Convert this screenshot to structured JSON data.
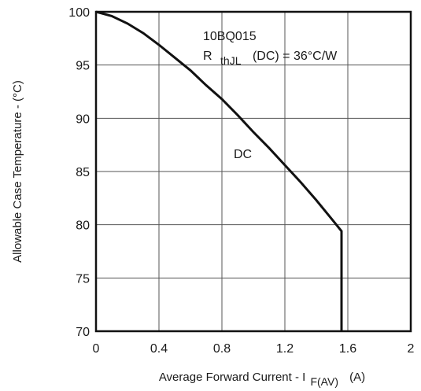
{
  "chart_data": {
    "type": "line",
    "title": "",
    "xlabel_main": "Average Forward Current - I",
    "xlabel_sub": "F(AV)",
    "xlabel_unit": "(A)",
    "ylabel": "Allowable Case Temperature - (°C)",
    "xlim": [
      0,
      2
    ],
    "ylim": [
      70,
      100
    ],
    "xticks": [
      0,
      0.4,
      0.8,
      1.2,
      1.6,
      2
    ],
    "xtick_labels": [
      "0",
      "0.4",
      "0.8",
      "1.2",
      "1.6",
      "2"
    ],
    "yticks": [
      70,
      75,
      80,
      85,
      90,
      95,
      100
    ],
    "ytick_labels": [
      "70",
      "75",
      "80",
      "85",
      "90",
      "95",
      "100"
    ],
    "grid": true,
    "annotations": {
      "part_number": "10BQ015",
      "rth_main": "R",
      "rth_sub": "thJL",
      "rth_value": "(DC) = 36°C/W",
      "curve_label": "DC"
    },
    "series": [
      {
        "name": "DC",
        "x": [
          0,
          0.1,
          0.2,
          0.3,
          0.4,
          0.5,
          0.6,
          0.7,
          0.8,
          0.9,
          1.0,
          1.1,
          1.2,
          1.3,
          1.4,
          1.5,
          1.56,
          1.56
        ],
        "y": [
          100,
          99.6,
          98.9,
          98.0,
          96.9,
          95.7,
          94.5,
          93.1,
          91.8,
          90.3,
          88.7,
          87.2,
          85.6,
          84.0,
          82.3,
          80.5,
          79.4,
          70
        ]
      }
    ]
  }
}
